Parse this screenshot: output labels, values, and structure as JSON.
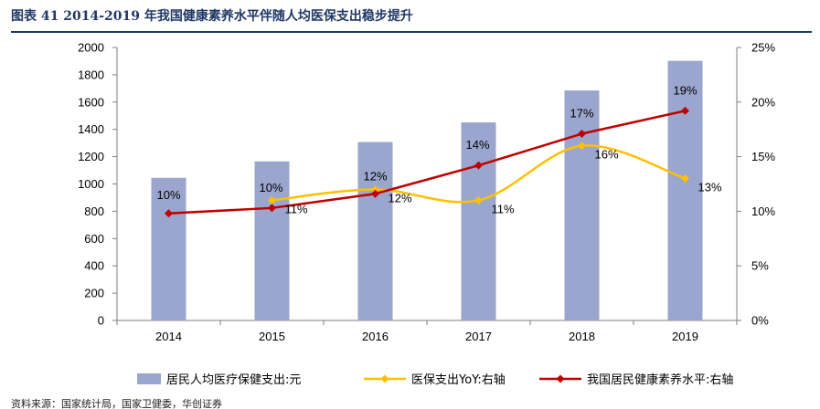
{
  "figure": {
    "title": "图表 41  2014-2019 年我国健康素养水平伴随人均医保支出稳步提升"
  },
  "source_text": "资料来源：国家统计局，国家卫健委，华创证券",
  "colors": {
    "title": "#1f3864",
    "bar": "#9aa6cd",
    "yoy_line": "#ffc000",
    "health_line": "#c00000"
  },
  "chart_data": {
    "type": "bar",
    "categories": [
      "2014",
      "2015",
      "2016",
      "2017",
      "2018",
      "2019"
    ],
    "left_axis": {
      "min": 0,
      "max": 2000,
      "step": 200,
      "ticks": [
        "0",
        "200",
        "400",
        "600",
        "800",
        "1000",
        "1200",
        "1400",
        "1600",
        "1800",
        "2000"
      ]
    },
    "right_axis": {
      "min": 0,
      "max": 25,
      "step": 5,
      "ticks": [
        "0%",
        "5%",
        "10%",
        "15%",
        "20%",
        "25%"
      ]
    },
    "grid": false,
    "legend_position": "bottom",
    "series": [
      {
        "name": "居民人均医疗保健支出:元",
        "type": "bar",
        "axis": "left",
        "values": [
          1045,
          1165,
          1307,
          1451,
          1685,
          1902
        ]
      },
      {
        "name": "医保支出YoY:右轴",
        "type": "line",
        "axis": "right",
        "smooth": true,
        "values": [
          null,
          11,
          12,
          11,
          16,
          13
        ],
        "labels": [
          "",
          "11%",
          "12%",
          "11%",
          "16%",
          "13%"
        ]
      },
      {
        "name": "我国居民健康素养水平:右轴",
        "type": "line",
        "axis": "right",
        "values": [
          9.8,
          10.3,
          11.6,
          14.2,
          17.1,
          19.2
        ],
        "labels": [
          "10%",
          "10%",
          "12%",
          "14%",
          "17%",
          "19%"
        ]
      }
    ]
  }
}
